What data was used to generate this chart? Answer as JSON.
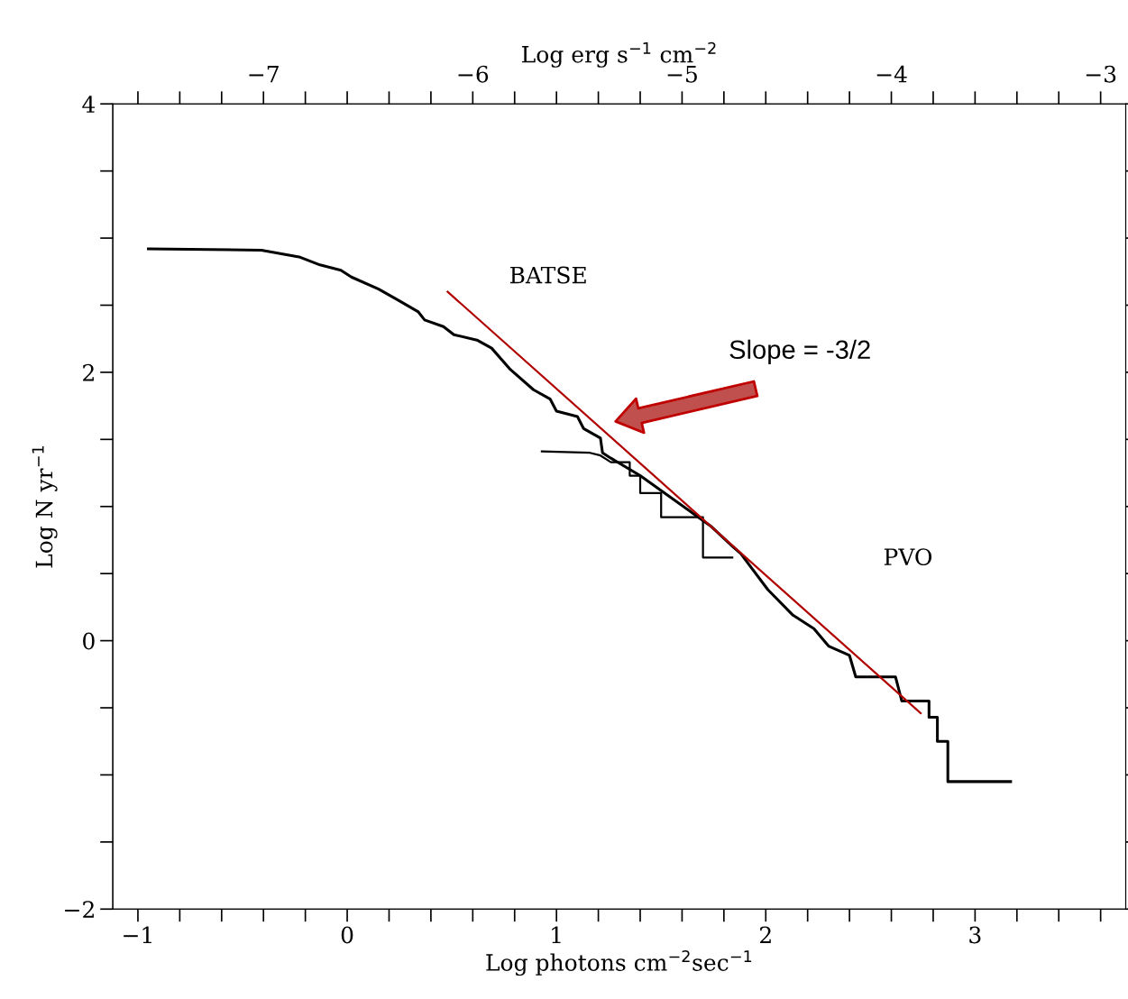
{
  "chart_data": {
    "type": "line",
    "xlabel": "Log photons cm$^{−2}$sec$^{−1}$",
    "ylabel": "Log N yr$^{−1}$",
    "x2label": "Log erg s$^{−1}$ cm$^{−2}$",
    "xlim": [
      -1.12,
      3.72
    ],
    "ylim": [
      -2,
      4
    ],
    "x2lim": [
      -7.72,
      -2.88
    ],
    "xticks": [
      -1,
      {
        "value": -0.8,
        "label": null
      },
      {
        "value": -0.6,
        "label": null
      },
      {
        "value": -0.4,
        "label": null
      },
      {
        "value": -0.2,
        "label": null
      },
      0,
      {
        "value": 0.2,
        "label": null
      },
      {
        "value": 0.4,
        "label": null
      },
      {
        "value": 0.6,
        "label": null
      },
      {
        "value": 0.8,
        "label": null
      },
      1,
      {
        "value": 1.2,
        "label": null
      },
      {
        "value": 1.4,
        "label": null
      },
      {
        "value": 1.6,
        "label": null
      },
      {
        "value": 1.8,
        "label": null
      },
      2,
      {
        "value": 2.2,
        "label": null
      },
      {
        "value": 2.4,
        "label": null
      },
      {
        "value": 2.6,
        "label": null
      },
      {
        "value": 2.8,
        "label": null
      },
      3,
      {
        "value": 3.2,
        "label": null
      },
      {
        "value": 3.4,
        "label": null
      },
      {
        "value": 3.6,
        "label": null
      }
    ],
    "x2ticks": [
      {
        "value": -7.6,
        "label": null
      },
      {
        "value": -7.4,
        "label": null
      },
      {
        "value": -7.2,
        "label": null
      },
      -7,
      {
        "value": -6.8,
        "label": null
      },
      {
        "value": -6.6,
        "label": null
      },
      {
        "value": -6.4,
        "label": null
      },
      {
        "value": -6.2,
        "label": null
      },
      -6,
      {
        "value": -5.8,
        "label": null
      },
      {
        "value": -5.6,
        "label": null
      },
      {
        "value": -5.4,
        "label": null
      },
      {
        "value": -5.2,
        "label": null
      },
      -5,
      {
        "value": -4.8,
        "label": null
      },
      {
        "value": -4.6,
        "label": null
      },
      {
        "value": -4.4,
        "label": null
      },
      {
        "value": -4.2,
        "label": null
      },
      -4,
      {
        "value": -3.8,
        "label": null
      },
      {
        "value": -3.6,
        "label": null
      },
      {
        "value": -3.4,
        "label": null
      },
      {
        "value": -3.2,
        "label": null
      },
      -3
    ],
    "yticks": [
      -2,
      {
        "value": -1.5,
        "label": null
      },
      {
        "value": -1,
        "label": null
      },
      {
        "value": -0.5,
        "label": null
      },
      0,
      {
        "value": 0.5,
        "label": null
      },
      {
        "value": 1,
        "label": null
      },
      {
        "value": 1.5,
        "label": null
      },
      2,
      {
        "value": 2.5,
        "label": null
      },
      {
        "value": 3,
        "label": null
      },
      {
        "value": 3.5,
        "label": null
      },
      4
    ],
    "grid": false,
    "series": [
      {
        "name": "BATSE",
        "color": "#000000",
        "x": [
          -0.95,
          -0.41,
          -0.23,
          -0.13,
          -0.03,
          0.02,
          0.15,
          0.23,
          0.34,
          0.37,
          0.46,
          0.51,
          0.62,
          0.69,
          0.78,
          0.89,
          0.97,
          1.0,
          1.1,
          1.13,
          1.21,
          1.22,
          1.26,
          1.4,
          1.66,
          1.74,
          1.85,
          1.88,
          2.01,
          2.13,
          2.23,
          2.3,
          2.4,
          2.43,
          2.62,
          2.65,
          2.78,
          2.78,
          2.82,
          2.82,
          2.87,
          2.87,
          3.17
        ],
        "values": [
          2.92,
          2.91,
          2.86,
          2.8,
          2.76,
          2.71,
          2.62,
          2.55,
          2.45,
          2.39,
          2.34,
          2.28,
          2.24,
          2.18,
          2.02,
          1.87,
          1.8,
          1.71,
          1.67,
          1.58,
          1.51,
          1.4,
          1.36,
          1.23,
          0.94,
          0.85,
          0.69,
          0.65,
          0.38,
          0.19,
          0.09,
          -0.04,
          -0.11,
          -0.27,
          -0.27,
          -0.45,
          -0.45,
          -0.57,
          -0.57,
          -0.75,
          -0.75,
          -1.05,
          -1.05
        ]
      },
      {
        "color": "#000000",
        "x": [
          0.93,
          1.16,
          1.21,
          1.26,
          1.35,
          1.35,
          1.4,
          1.4,
          1.5,
          1.5,
          1.7,
          1.7,
          1.84
        ],
        "values": [
          1.41,
          1.4,
          1.38,
          1.33,
          1.33,
          1.23,
          1.23,
          1.1,
          1.1,
          0.92,
          0.92,
          0.62,
          0.62
        ]
      },
      {
        "color": "#b00000",
        "x": [
          0.48,
          2.74
        ],
        "values": [
          2.6,
          -0.54
        ]
      }
    ],
    "annotations": [
      "Slope = -3/2",
      "PVO"
    ]
  }
}
